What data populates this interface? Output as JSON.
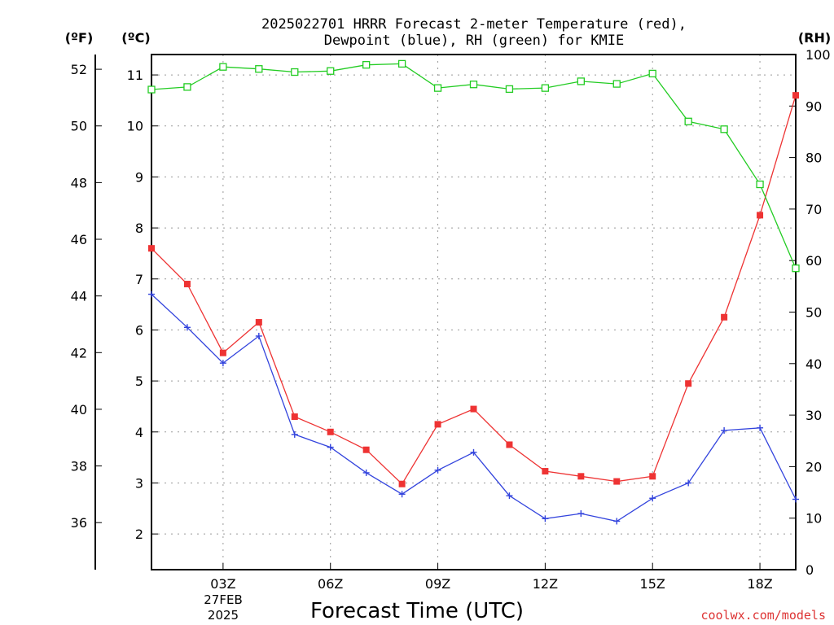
{
  "chart_data": {
    "type": "line",
    "title_line1": "2025022701 HRRR Forecast 2-meter Temperature (red),",
    "title_line2": "Dewpoint (blue), RH (green) for KMIE",
    "xlabel": "Forecast Time (UTC)",
    "left_outer_axis_label": "(ºF)",
    "left_axis_label": "(ºC)",
    "right_axis_label": "(RH)",
    "watermark": "coolwx.com/models",
    "date_label_line1": "27FEB",
    "date_label_line2": "2025",
    "x_hours": [
      1,
      2,
      3,
      4,
      5,
      6,
      7,
      8,
      9,
      10,
      11,
      12,
      13,
      14,
      15,
      16,
      17,
      18,
      19
    ],
    "x_ticks": [
      {
        "hour": 3,
        "label": "03Z"
      },
      {
        "hour": 6,
        "label": "06Z"
      },
      {
        "hour": 9,
        "label": "09Z"
      },
      {
        "hour": 12,
        "label": "12Z"
      },
      {
        "hour": 15,
        "label": "15Z"
      },
      {
        "hour": 18,
        "label": "18Z"
      }
    ],
    "xlim": [
      1,
      19
    ],
    "celsius_ylim": [
      1.3,
      11.4
    ],
    "celsius_ticks": [
      2,
      3,
      4,
      5,
      6,
      7,
      8,
      9,
      10,
      11
    ],
    "fahrenheit_ticks": [
      36,
      38,
      40,
      42,
      44,
      46,
      48,
      50,
      52
    ],
    "rh_ylim": [
      0,
      100
    ],
    "rh_ticks": [
      0,
      10,
      20,
      30,
      40,
      50,
      60,
      70,
      80,
      90,
      100
    ],
    "grid": true,
    "series": [
      {
        "name": "Temperature",
        "axis": "celsius",
        "color": "#ee3333",
        "marker": "filled-square",
        "values": [
          7.6,
          6.9,
          5.55,
          6.15,
          4.3,
          4.0,
          3.65,
          2.98,
          4.15,
          4.45,
          3.75,
          3.23,
          3.13,
          3.03,
          3.13,
          4.95,
          6.25,
          8.25,
          10.6
        ]
      },
      {
        "name": "Dewpoint",
        "axis": "celsius",
        "color": "#3344dd",
        "marker": "plus",
        "values": [
          6.7,
          6.05,
          5.35,
          5.88,
          3.95,
          3.7,
          3.2,
          2.78,
          3.25,
          3.6,
          2.75,
          2.3,
          2.4,
          2.25,
          2.7,
          3.0,
          4.03,
          4.08,
          2.68
        ]
      },
      {
        "name": "RH",
        "axis": "rh",
        "color": "#22cc22",
        "marker": "open-square",
        "values": [
          93.2,
          93.7,
          97.6,
          97.2,
          96.6,
          96.8,
          98.0,
          98.2,
          93.5,
          94.2,
          93.3,
          93.5,
          94.8,
          94.3,
          96.3,
          87.0,
          85.5,
          74.8,
          58.5
        ]
      }
    ]
  }
}
